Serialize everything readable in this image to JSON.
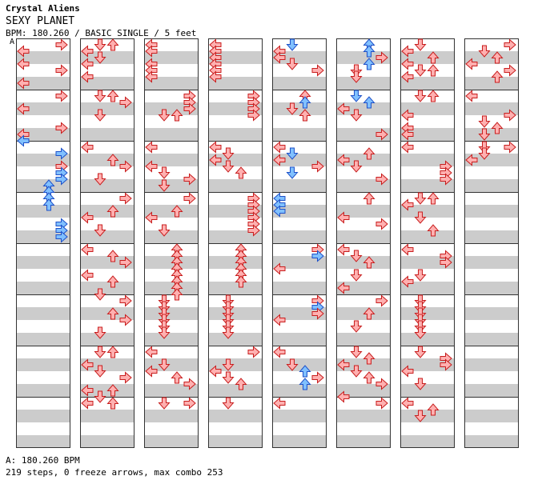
{
  "header": {
    "artist": "Crystal Aliens",
    "title": "SEXY PLANET",
    "info": "BPM: 180.260 / BASIC SINGLE / 5 feet"
  },
  "bpm_marker": "A",
  "footer": {
    "bpm_line": "A: 180.260 BPM",
    "stats_line": "219 steps, 0 freeze arrows, max combo 253"
  },
  "colors": {
    "stripe": "#cccccc",
    "border": "#333333",
    "arrow_red_fill": "#ffb0b0",
    "arrow_red_stroke": "#c81e1e",
    "arrow_blue_fill": "#80c0ff",
    "arrow_blue_stroke": "#1e50c8"
  },
  "lane_icons": [
    "left-arrow-icon",
    "down-arrow-icon",
    "up-arrow-icon",
    "right-arrow-icon"
  ],
  "measures": [
    [
      [
        0,
        3,
        0
      ],
      [
        2,
        0,
        0
      ],
      [
        6,
        0,
        0
      ],
      [
        8,
        3,
        0
      ],
      [
        12,
        0,
        0
      ],
      [
        16,
        3,
        0
      ],
      [
        20,
        0,
        0
      ],
      [
        26,
        3,
        0
      ],
      [
        28,
        0,
        0
      ],
      [
        30,
        0,
        1
      ],
      [
        34,
        3,
        1
      ],
      [
        38,
        3,
        0
      ],
      [
        40,
        3,
        1
      ],
      [
        42,
        3,
        1
      ],
      [
        44,
        2,
        1
      ],
      [
        46,
        2,
        1
      ],
      [
        48,
        2,
        1
      ],
      [
        50,
        2,
        1
      ],
      [
        56,
        3,
        1
      ],
      [
        58,
        3,
        1
      ],
      [
        60,
        3,
        1
      ]
    ],
    [
      [
        0,
        1,
        0
      ],
      [
        0,
        2,
        0
      ],
      [
        2,
        0,
        0
      ],
      [
        4,
        1,
        0
      ],
      [
        6,
        0,
        0
      ],
      [
        10,
        0,
        0
      ],
      [
        16,
        1,
        0
      ],
      [
        16,
        2,
        0
      ],
      [
        18,
        3,
        0
      ],
      [
        22,
        1,
        0
      ],
      [
        32,
        0,
        0
      ],
      [
        36,
        2,
        0
      ],
      [
        38,
        3,
        0
      ],
      [
        42,
        1,
        0
      ],
      [
        48,
        3,
        0
      ],
      [
        52,
        2,
        0
      ],
      [
        54,
        0,
        0
      ],
      [
        58,
        1,
        0
      ],
      [
        64,
        0,
        0
      ],
      [
        66,
        2,
        0
      ],
      [
        68,
        3,
        0
      ],
      [
        72,
        0,
        0
      ],
      [
        74,
        2,
        0
      ],
      [
        78,
        1,
        0
      ],
      [
        80,
        3,
        0
      ],
      [
        84,
        2,
        0
      ],
      [
        86,
        3,
        0
      ],
      [
        90,
        1,
        0
      ],
      [
        96,
        1,
        0
      ],
      [
        96,
        2,
        0
      ],
      [
        100,
        0,
        0
      ],
      [
        102,
        1,
        0
      ],
      [
        104,
        3,
        0
      ],
      [
        108,
        0,
        0
      ],
      [
        108,
        2,
        0
      ],
      [
        110,
        1,
        0
      ],
      [
        112,
        0,
        0
      ],
      [
        112,
        2,
        0
      ]
    ],
    [
      [
        0,
        0,
        0
      ],
      [
        2,
        0,
        0
      ],
      [
        6,
        0,
        0
      ],
      [
        8,
        0,
        0
      ],
      [
        10,
        0,
        0
      ],
      [
        16,
        3,
        0
      ],
      [
        18,
        3,
        0
      ],
      [
        20,
        3,
        0
      ],
      [
        22,
        1,
        0
      ],
      [
        22,
        2,
        0
      ],
      [
        32,
        0,
        0
      ],
      [
        38,
        0,
        0
      ],
      [
        40,
        1,
        0
      ],
      [
        42,
        3,
        0
      ],
      [
        44,
        1,
        0
      ],
      [
        48,
        3,
        0
      ],
      [
        52,
        2,
        0
      ],
      [
        54,
        0,
        0
      ],
      [
        58,
        1,
        0
      ],
      [
        64,
        2,
        0
      ],
      [
        66,
        2,
        0
      ],
      [
        68,
        2,
        0
      ],
      [
        70,
        2,
        0
      ],
      [
        72,
        2,
        0
      ],
      [
        74,
        2,
        0
      ],
      [
        76,
        2,
        0
      ],
      [
        78,
        2,
        0
      ],
      [
        80,
        1,
        0
      ],
      [
        82,
        1,
        0
      ],
      [
        84,
        1,
        0
      ],
      [
        86,
        1,
        0
      ],
      [
        88,
        1,
        0
      ],
      [
        90,
        1,
        0
      ],
      [
        96,
        0,
        0
      ],
      [
        100,
        1,
        0
      ],
      [
        102,
        0,
        0
      ],
      [
        104,
        2,
        0
      ],
      [
        106,
        3,
        0
      ],
      [
        112,
        1,
        0
      ],
      [
        112,
        3,
        0
      ]
    ],
    [
      [
        0,
        0,
        0
      ],
      [
        2,
        0,
        0
      ],
      [
        4,
        0,
        0
      ],
      [
        6,
        0,
        0
      ],
      [
        8,
        0,
        0
      ],
      [
        10,
        0,
        0
      ],
      [
        16,
        3,
        0
      ],
      [
        18,
        3,
        0
      ],
      [
        20,
        3,
        0
      ],
      [
        22,
        3,
        0
      ],
      [
        32,
        0,
        0
      ],
      [
        34,
        1,
        0
      ],
      [
        36,
        0,
        0
      ],
      [
        38,
        1,
        0
      ],
      [
        40,
        2,
        0
      ],
      [
        48,
        3,
        0
      ],
      [
        50,
        3,
        0
      ],
      [
        52,
        3,
        0
      ],
      [
        54,
        3,
        0
      ],
      [
        56,
        3,
        0
      ],
      [
        58,
        3,
        0
      ],
      [
        64,
        2,
        0
      ],
      [
        66,
        2,
        0
      ],
      [
        68,
        2,
        0
      ],
      [
        70,
        2,
        0
      ],
      [
        72,
        2,
        0
      ],
      [
        74,
        2,
        0
      ],
      [
        80,
        1,
        0
      ],
      [
        82,
        1,
        0
      ],
      [
        84,
        1,
        0
      ],
      [
        86,
        1,
        0
      ],
      [
        88,
        1,
        0
      ],
      [
        90,
        1,
        0
      ],
      [
        96,
        3,
        0
      ],
      [
        100,
        1,
        0
      ],
      [
        102,
        0,
        0
      ],
      [
        104,
        1,
        0
      ],
      [
        106,
        2,
        0
      ],
      [
        112,
        1,
        0
      ]
    ],
    [
      [
        0,
        1,
        1
      ],
      [
        2,
        0,
        0
      ],
      [
        4,
        0,
        0
      ],
      [
        6,
        1,
        0
      ],
      [
        8,
        3,
        0
      ],
      [
        16,
        2,
        0
      ],
      [
        18,
        2,
        1
      ],
      [
        20,
        1,
        0
      ],
      [
        22,
        2,
        0
      ],
      [
        32,
        0,
        0
      ],
      [
        34,
        1,
        1
      ],
      [
        36,
        0,
        0
      ],
      [
        38,
        3,
        0
      ],
      [
        40,
        1,
        1
      ],
      [
        48,
        0,
        1
      ],
      [
        50,
        0,
        1
      ],
      [
        52,
        0,
        1
      ],
      [
        64,
        3,
        0
      ],
      [
        66,
        3,
        1
      ],
      [
        70,
        0,
        0
      ],
      [
        80,
        3,
        0
      ],
      [
        82,
        3,
        1
      ],
      [
        84,
        3,
        0
      ],
      [
        86,
        0,
        0
      ],
      [
        96,
        0,
        0
      ],
      [
        100,
        1,
        0
      ],
      [
        102,
        2,
        1
      ],
      [
        104,
        3,
        0
      ],
      [
        106,
        2,
        1
      ],
      [
        112,
        0,
        0
      ]
    ],
    [
      [
        0,
        2,
        1
      ],
      [
        2,
        2,
        1
      ],
      [
        4,
        3,
        0
      ],
      [
        6,
        2,
        1
      ],
      [
        8,
        1,
        0
      ],
      [
        10,
        1,
        0
      ],
      [
        16,
        1,
        1
      ],
      [
        18,
        2,
        1
      ],
      [
        20,
        0,
        0
      ],
      [
        22,
        1,
        0
      ],
      [
        28,
        3,
        0
      ],
      [
        34,
        2,
        0
      ],
      [
        36,
        0,
        0
      ],
      [
        38,
        1,
        0
      ],
      [
        42,
        3,
        0
      ],
      [
        48,
        2,
        0
      ],
      [
        54,
        0,
        0
      ],
      [
        56,
        3,
        0
      ],
      [
        64,
        0,
        0
      ],
      [
        66,
        1,
        0
      ],
      [
        68,
        2,
        0
      ],
      [
        72,
        1,
        0
      ],
      [
        76,
        0,
        0
      ],
      [
        80,
        3,
        0
      ],
      [
        84,
        2,
        0
      ],
      [
        88,
        1,
        0
      ],
      [
        96,
        1,
        0
      ],
      [
        98,
        2,
        0
      ],
      [
        100,
        0,
        0
      ],
      [
        102,
        1,
        0
      ],
      [
        104,
        2,
        0
      ],
      [
        106,
        3,
        0
      ],
      [
        110,
        0,
        0
      ],
      [
        112,
        3,
        0
      ]
    ],
    [
      [
        0,
        1,
        0
      ],
      [
        2,
        0,
        0
      ],
      [
        4,
        2,
        0
      ],
      [
        6,
        0,
        0
      ],
      [
        8,
        1,
        0
      ],
      [
        8,
        2,
        0
      ],
      [
        10,
        0,
        0
      ],
      [
        16,
        1,
        0
      ],
      [
        16,
        2,
        0
      ],
      [
        22,
        0,
        0
      ],
      [
        26,
        0,
        0
      ],
      [
        28,
        0,
        0
      ],
      [
        32,
        0,
        0
      ],
      [
        38,
        3,
        0
      ],
      [
        40,
        3,
        0
      ],
      [
        42,
        3,
        0
      ],
      [
        48,
        1,
        0
      ],
      [
        48,
        2,
        0
      ],
      [
        50,
        0,
        0
      ],
      [
        54,
        1,
        0
      ],
      [
        58,
        2,
        0
      ],
      [
        64,
        0,
        0
      ],
      [
        66,
        3,
        0
      ],
      [
        68,
        3,
        0
      ],
      [
        72,
        1,
        0
      ],
      [
        74,
        0,
        0
      ],
      [
        80,
        1,
        0
      ],
      [
        82,
        1,
        0
      ],
      [
        84,
        1,
        0
      ],
      [
        86,
        1,
        0
      ],
      [
        88,
        1,
        0
      ],
      [
        90,
        1,
        0
      ],
      [
        96,
        1,
        0
      ],
      [
        98,
        3,
        0
      ],
      [
        100,
        3,
        0
      ],
      [
        102,
        0,
        0
      ],
      [
        106,
        1,
        0
      ],
      [
        112,
        0,
        0
      ],
      [
        114,
        2,
        0
      ],
      [
        116,
        1,
        0
      ]
    ],
    [
      [
        0,
        3,
        0
      ],
      [
        2,
        1,
        0
      ],
      [
        4,
        2,
        0
      ],
      [
        6,
        0,
        0
      ],
      [
        8,
        3,
        0
      ],
      [
        10,
        2,
        0
      ],
      [
        16,
        0,
        0
      ],
      [
        22,
        3,
        0
      ],
      [
        24,
        1,
        0
      ],
      [
        26,
        2,
        0
      ],
      [
        28,
        1,
        0
      ],
      [
        32,
        1,
        0
      ],
      [
        32,
        3,
        0
      ],
      [
        34,
        1,
        0
      ],
      [
        36,
        0,
        0
      ]
    ]
  ]
}
